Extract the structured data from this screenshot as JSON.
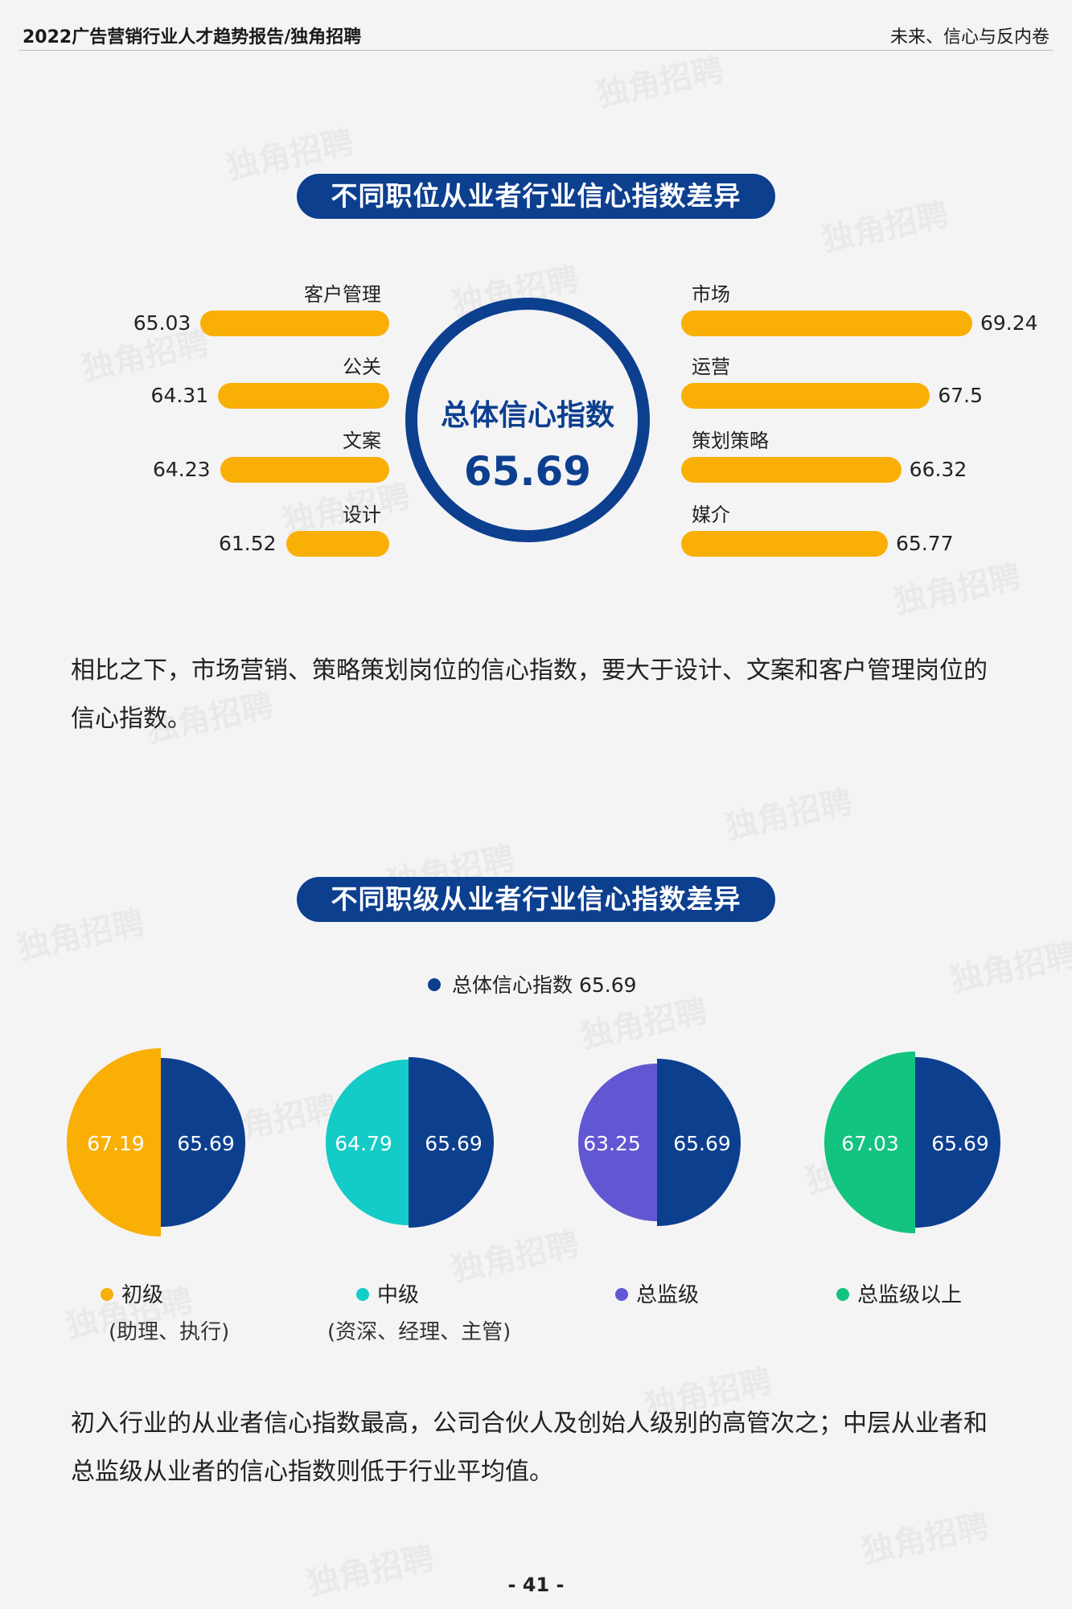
{
  "header": {
    "left": "2022广告营销行业人才趋势报告/独角招聘",
    "right": "未来、信心与反内卷"
  },
  "section1": {
    "title": "不同职位从业者行业信心指数差异"
  },
  "center": {
    "label": "总体信心指数",
    "value": "65.69"
  },
  "section1_para": "相比之下，市场营销、策略策划岗位的信心指数，要大于设计、文案和客户管理岗位的信心指数。",
  "section2": {
    "title": "不同职级从业者行业信心指数差异"
  },
  "section2_para": "初入行业的从业者信心指数最高，公司合伙人及创始人级别的高管次之；中层从业者和总监级从业者的信心指数则低于行业平均值。",
  "page": "- 41 -",
  "watermark": "独角招聘",
  "colors": {
    "navy": "#0d3f8f",
    "orange": "#f9af06",
    "cyan": "#13cbc7",
    "purple": "#6257d2",
    "green": "#13c380"
  },
  "chart_data": [
    {
      "type": "bar",
      "orientation": "horizontal",
      "left_group": {
        "categories": [
          "客户管理",
          "公关",
          "文案",
          "设计"
        ],
        "values": [
          65.03,
          64.31,
          64.23,
          61.52
        ]
      },
      "right_group": {
        "categories": [
          "市场",
          "运营",
          "策划策略",
          "媒介"
        ],
        "values": [
          69.24,
          67.5,
          66.32,
          65.77
        ]
      },
      "center_label": "总体信心指数",
      "center_value": 65.69
    },
    {
      "type": "pie",
      "legend_top": {
        "label": "总体信心指数 65.69"
      },
      "overall": 65.69,
      "items": [
        {
          "name": "初级",
          "sub": "(助理、执行)",
          "value": 67.19,
          "value_label": "67.19",
          "overall_label": "65.69",
          "color": "#f9af06"
        },
        {
          "name": "中级",
          "sub": "(资深、经理、主管)",
          "value": 64.79,
          "value_label": "64.79",
          "overall_label": "65.69",
          "color": "#13cbc7"
        },
        {
          "name": "总监级",
          "sub": "",
          "value": 63.25,
          "value_label": "63.25",
          "overall_label": "65.69",
          "color": "#6257d2"
        },
        {
          "name": "总监级以上",
          "sub": "",
          "value": 67.03,
          "value_label": "67.03",
          "overall_label": "65.69",
          "color": "#13c380"
        }
      ]
    }
  ]
}
